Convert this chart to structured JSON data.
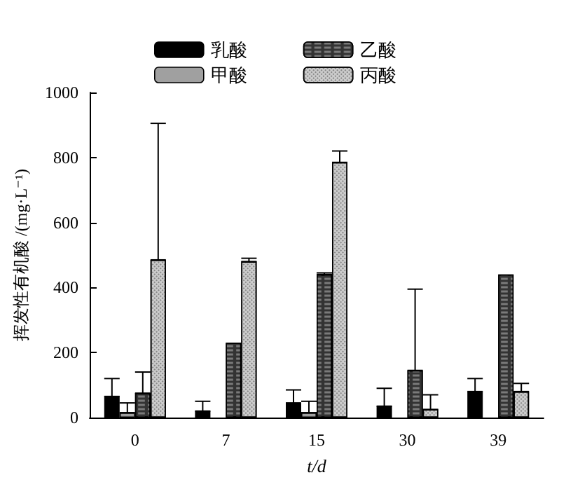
{
  "chart_data": {
    "type": "bar",
    "xlabel": "t/d",
    "ylabel": "挥发性有机酸 /(mg·L⁻¹)",
    "categories": [
      "0",
      "7",
      "15",
      "30",
      "39"
    ],
    "series": [
      {
        "name": "乳酸",
        "color": "#000000",
        "values": [
          65,
          20,
          45,
          35,
          80
        ],
        "errors": [
          [
            65,
            120
          ],
          [
            20,
            50
          ],
          [
            45,
            85
          ],
          [
            35,
            90
          ],
          [
            80,
            120
          ]
        ]
      },
      {
        "name": "甲酸",
        "color": "#a0a0a0",
        "values": [
          15,
          null,
          15,
          null,
          null
        ],
        "errors": [
          [
            15,
            45
          ],
          null,
          [
            15,
            50
          ],
          null,
          null
        ]
      },
      {
        "name": "乙酸",
        "color": "#333333",
        "values": [
          75,
          230,
          440,
          145,
          440
        ],
        "errors": [
          [
            75,
            140
          ],
          null,
          [
            440,
            445
          ],
          [
            145,
            395
          ],
          null
        ]
      },
      {
        "name": "丙酸",
        "color": "#cccccc",
        "values": [
          485,
          480,
          785,
          25,
          80
        ],
        "errors": [
          [
            485,
            905
          ],
          [
            480,
            490
          ],
          [
            785,
            820
          ],
          [
            25,
            70
          ],
          [
            80,
            105
          ]
        ]
      }
    ],
    "ylim": [
      0,
      1000
    ],
    "yticks": [
      0,
      200,
      400,
      600,
      800,
      1000
    ],
    "grid": false,
    "legend": "top"
  }
}
